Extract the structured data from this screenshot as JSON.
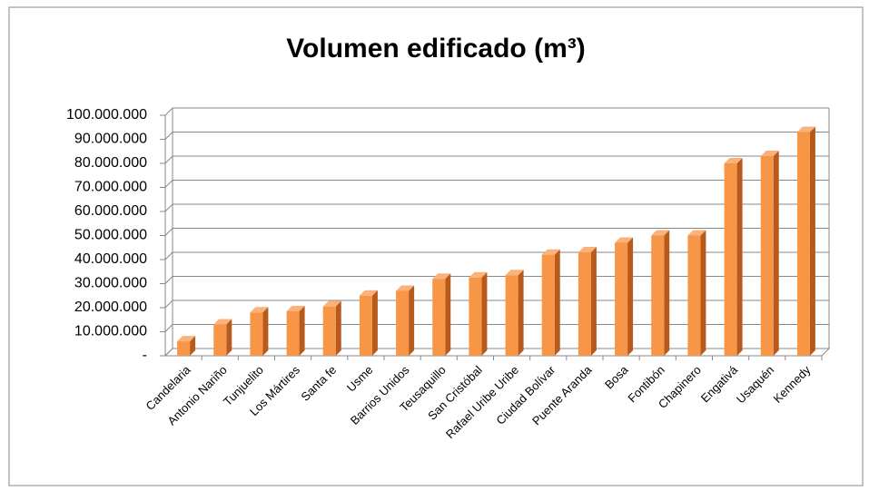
{
  "chart_data": {
    "type": "bar",
    "title": "Volumen edificado (m³)",
    "categories": [
      "Candelaria",
      "Antonio Nariño",
      "Tunjuelito",
      "Los Mártires",
      "Santa fe",
      "Usme",
      "Barrios Unidos",
      "Teusaquillo",
      "San Cristóbal",
      "Rafael Uribe Uribe",
      "Ciudad Bolívar",
      "Puente Aranda",
      "Bosa",
      "Fontibón",
      "Chapinero",
      "Engativá",
      "Usaquén",
      "Kennedy"
    ],
    "values": [
      6000000,
      13000000,
      18000000,
      18500000,
      20500000,
      25000000,
      27000000,
      32000000,
      32500000,
      33500000,
      42000000,
      43000000,
      47000000,
      50000000,
      50000000,
      80000000,
      83000000,
      93000000
    ],
    "color": "#f79646",
    "ylim": [
      0,
      100000000
    ],
    "yticks": [
      {
        "value": 0,
        "label": "-"
      },
      {
        "value": 10000000,
        "label": "10.000.000"
      },
      {
        "value": 20000000,
        "label": "20.000.000"
      },
      {
        "value": 30000000,
        "label": "30.000.000"
      },
      {
        "value": 40000000,
        "label": "40.000.000"
      },
      {
        "value": 50000000,
        "label": "50.000.000"
      },
      {
        "value": 60000000,
        "label": "60.000.000"
      },
      {
        "value": 70000000,
        "label": "70.000.000"
      },
      {
        "value": 80000000,
        "label": "80.000.000"
      },
      {
        "value": 90000000,
        "label": "90.000.000"
      },
      {
        "value": 100000000,
        "label": "100.000.000"
      }
    ],
    "grid": true
  }
}
